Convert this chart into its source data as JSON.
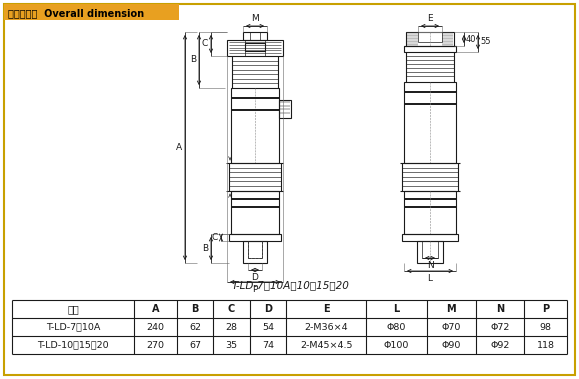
{
  "title_text": "外形尺寸：  Overall dimension",
  "title_bg": "#E8A020",
  "caption": "T-LD-7、10A、10、15、20",
  "table_headers": [
    "型号",
    "A",
    "B",
    "C",
    "D",
    "E",
    "L",
    "M",
    "N",
    "P"
  ],
  "table_rows": [
    [
      "T-LD-7、10A",
      "240",
      "62",
      "28",
      "54",
      "2-M36×4",
      "Φ80",
      "Φ70",
      "Φ72",
      "98"
    ],
    [
      "T-LD-10、15、20",
      "270",
      "67",
      "35",
      "74",
      "2-M45×4.5",
      "Φ100",
      "Φ90",
      "Φ92",
      "118"
    ]
  ],
  "border_color": "#C8A000",
  "bg_color": "#FFFFFF",
  "drawing_color": "#1a1a1a",
  "dim_color": "#1a1a1a",
  "fig_w": 5.79,
  "fig_h": 3.79,
  "dpi": 100
}
